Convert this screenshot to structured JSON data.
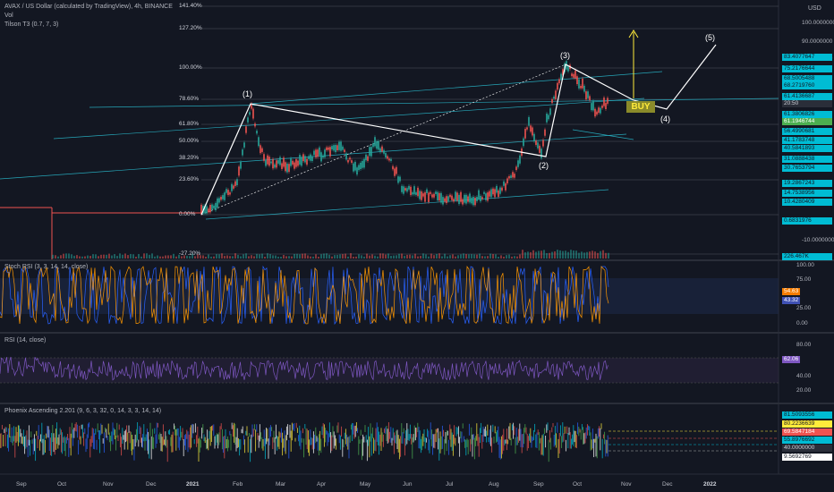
{
  "header": {
    "title": "AVAX / US Dollar (calculated by TradingView), 4h, BINANCE",
    "vol_label": "Vol",
    "indicator_label": "Tilson T3 (0.7, 7, 3)",
    "currency": "USD"
  },
  "panes": {
    "stoch_label": "Stoch RSI (3, 3, 14, 14, close)",
    "rsi_label": "RSI (14, close)",
    "phoenix_label": "Phoenix Ascending 2.201 (9, 6, 3, 32, 0, 14, 3, 3, 14, 14)"
  },
  "buy_label": "BUY",
  "waves": [
    "(1)",
    "(2)",
    "(3)",
    "(4)",
    "(5)"
  ],
  "fib_levels": [
    "141.40%",
    "127.20%",
    "100.00%",
    "78.60%",
    "61.80%",
    "50.00%",
    "38.20%",
    "23.60%",
    "0.00%",
    "-27.20%"
  ],
  "price_axis": {
    "ticks": [
      "100.0000000",
      "90.0000000",
      "80.0000000",
      "-10.0000000"
    ],
    "tags": [
      {
        "text": "83.4077647",
        "style": "blue"
      },
      {
        "text": "75.2176644",
        "style": "blue"
      },
      {
        "text": "68.5005488",
        "style": "blue"
      },
      {
        "text": "68.2719760",
        "style": "blue"
      },
      {
        "text": "61.4136687",
        "style": "blue"
      },
      {
        "text": "20:50",
        "style": "gray"
      },
      {
        "text": "61.3806826",
        "style": "blue"
      },
      {
        "text": "61.1946744",
        "style": "green"
      },
      {
        "text": "56.4990681",
        "style": "blue"
      },
      {
        "text": "40.5841893",
        "style": "blue"
      },
      {
        "text": "41.1783748",
        "style": "blue"
      },
      {
        "text": "31.0888438",
        "style": "blue"
      },
      {
        "text": "30.7653794",
        "style": "blue"
      },
      {
        "text": "19.2867243",
        "style": "blue"
      },
      {
        "text": "14.7538956",
        "style": "blue"
      },
      {
        "text": "10.4280409",
        "style": "blue"
      },
      {
        "text": "0.6831976",
        "style": "blue"
      },
      {
        "text": "226.467K",
        "style": "blue"
      }
    ]
  },
  "stoch_axis": {
    "ticks": [
      "100.00",
      "75.00",
      "25.00",
      "0.00"
    ],
    "tags": [
      {
        "text": "54.63",
        "style": "orange"
      },
      {
        "text": "43.32",
        "style": "indigo"
      }
    ]
  },
  "rsi_axis": {
    "ticks": [
      "80.00",
      "40.00",
      "20.00"
    ],
    "tags": [
      {
        "text": "62.06",
        "style": "purple"
      }
    ]
  },
  "phoenix_axis": {
    "tags": [
      {
        "text": "81.5093556",
        "style": "blue"
      },
      {
        "text": "80.2236639",
        "style": "yellow"
      },
      {
        "text": "69.5847184",
        "style": "red"
      },
      {
        "text": "55.8976692",
        "style": "blue"
      },
      {
        "text": "40.0000000",
        "style": "gray"
      },
      {
        "text": "9.5692769",
        "style": "white"
      }
    ]
  },
  "time_axis": [
    "Sep",
    "Oct",
    "Nov",
    "Dec",
    "2021",
    "Feb",
    "Mar",
    "Apr",
    "May",
    "Jun",
    "Jul",
    "Aug",
    "Sep",
    "Oct",
    "Nov",
    "Dec",
    "2022"
  ],
  "chart_data": {
    "type": "line",
    "series_note": "",
    "x": [
      "2021-01-01",
      "2021-02-10",
      "2021-03-15",
      "2021-04-15",
      "2021-05-10",
      "2021-06-20",
      "2021-07-20",
      "2021-08-10",
      "2021-09-01",
      "2021-09-15",
      "2021-09-23",
      "2021-10-05",
      "2021-10-20"
    ],
    "values": [
      3,
      55,
      30,
      40,
      20,
      12,
      11,
      25,
      63,
      40,
      100,
      72,
      61.4
    ],
    "ylim": [
      -27,
      145
    ],
    "wave_points": [
      {
        "label": "(1)",
        "date": "2021-02-10",
        "value": 59
      },
      {
        "label": "(2)",
        "date": "2021-09-15",
        "value": 36
      },
      {
        "label": "(3)",
        "date": "2021-09-23",
        "value": 100
      },
      {
        "label": "(4)",
        "date": "2021-11-20",
        "value": 65
      },
      {
        "label": "(5)",
        "date": "2022-01-05",
        "value": 90
      }
    ],
    "stoch_rsi": {
      "k": 54.63,
      "d": 43.32
    },
    "rsi": 62.06
  }
}
